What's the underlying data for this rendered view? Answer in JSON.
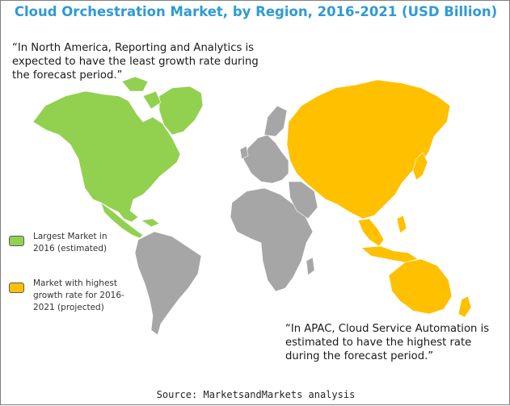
{
  "title": "Cloud Orchestration  Market, by Region, 2016-2021 (USD Billion)",
  "colors": {
    "title": "#2e9ad6",
    "north_america": "#92d050",
    "apac": "#ffc000",
    "other_regions": "#a6a6a6"
  },
  "annotations": {
    "north_america": {
      "line1": "“In North America, Reporting and Analytics is",
      "line2": "expected to have the least growth rate during",
      "line3": "the forecast period.”"
    },
    "apac": {
      "line1": "“In APAC, Cloud Service Automation is",
      "line2": "estimated to have the highest rate",
      "line3": "during the forecast period.”"
    }
  },
  "legend": {
    "largest": {
      "line1": "Largest Market in",
      "line2": "2016 (estimated)",
      "color": "#92d050",
      "region": "North America"
    },
    "fastest": {
      "line1": "Market with highest",
      "line2": "growth rate for 2016-",
      "line3": "2021 (projected)",
      "color": "#ffc000",
      "region": "APAC"
    }
  },
  "source": "Source: MarketsandMarkets analysis"
}
